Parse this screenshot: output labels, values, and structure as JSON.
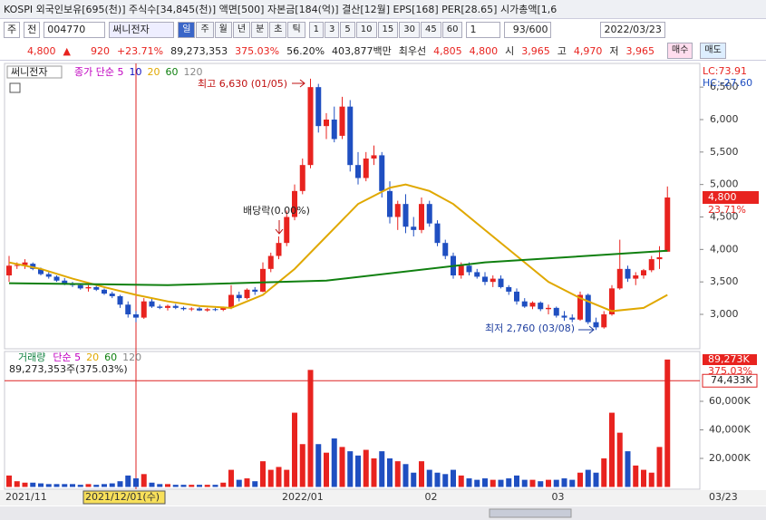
{
  "toolbar": {
    "info": "KOSPI 외국인보유[695(천)] 주식수[34,845(천)] 액면[500] 자본금[184(억)] 결산[12월] EPS[168] PER[28.65] 시가총액[1,6",
    "market": "주",
    "prev": "전",
    "code": "004770",
    "name": "써니전자",
    "periods": [
      "일",
      "주",
      "월",
      "년",
      "분",
      "초",
      "틱"
    ],
    "minutes": [
      "1",
      "3",
      "5",
      "10",
      "15",
      "30",
      "45",
      "60"
    ],
    "unit": "1",
    "count": "93/600",
    "date": "2022/03/23"
  },
  "quote": {
    "price": "4,800",
    "arrow": "▲",
    "change": "920",
    "rate": "+23.71%",
    "volume": "89,273,353",
    "volume_rate": "375.03%",
    "turnover": "56.20%",
    "amount": "403,877백만",
    "best_label": "최우선",
    "ask": "4,805",
    "bid": "4,800",
    "open_label": "시",
    "open": "3,965",
    "high_label": "고",
    "high": "4,970",
    "low_label": "저",
    "low": "3,965",
    "buy": "매수",
    "sell": "매도"
  },
  "chart_data": [
    {
      "type": "candlestick",
      "name": "써니전자",
      "lc": "LC:73.91",
      "hc": "HC:-27.60",
      "up_color": "#e8231f",
      "down_color": "#1f4fc1",
      "series": [
        {
          "name": "종가 단순 5",
          "color": "#c000c0"
        },
        {
          "name": "10",
          "color": "#1010c0"
        },
        {
          "name": "20",
          "color": "#e0a800",
          "x": [
            0,
            4,
            8,
            12,
            16,
            20,
            24,
            28,
            32,
            36,
            40,
            44,
            48,
            50,
            53,
            56,
            60,
            64,
            68,
            72,
            76,
            80,
            83
          ],
          "values": [
            3800,
            3700,
            3550,
            3420,
            3300,
            3200,
            3130,
            3100,
            3300,
            3700,
            4200,
            4700,
            4950,
            5000,
            4900,
            4700,
            4300,
            3900,
            3500,
            3250,
            3050,
            3100,
            3300
          ]
        },
        {
          "name": "60",
          "color": "#108010",
          "x": [
            0,
            20,
            40,
            60,
            83
          ],
          "values": [
            3480,
            3450,
            3520,
            3800,
            3980
          ]
        },
        {
          "name": "120",
          "color": "#888888"
        }
      ],
      "categories": [
        "2021/11",
        null,
        null,
        null,
        null,
        null,
        null,
        null,
        null,
        null,
        null,
        null,
        null,
        null,
        null,
        null,
        "2021/12/01(수)",
        null,
        null,
        null,
        null,
        null,
        null,
        null,
        null,
        null,
        null,
        null,
        null,
        null,
        null,
        null,
        null,
        null,
        null,
        null,
        "2022/01",
        null,
        null,
        null,
        null,
        null,
        null,
        null,
        null,
        null,
        null,
        null,
        null,
        null,
        null,
        null,
        null,
        null,
        "02",
        null,
        null,
        null,
        null,
        null,
        null,
        null,
        null,
        null,
        null,
        null,
        null,
        null,
        null,
        null,
        "03",
        null,
        null,
        null,
        null,
        null,
        null,
        null,
        null,
        null,
        null,
        null,
        null,
        null
      ],
      "x_end_label": "03/23",
      "candles": [
        [
          3600,
          3900,
          3500,
          3750
        ],
        [
          3750,
          3800,
          3700,
          3760
        ],
        [
          3760,
          3850,
          3700,
          3800
        ],
        [
          3780,
          3800,
          3680,
          3700
        ],
        [
          3700,
          3720,
          3600,
          3620
        ],
        [
          3620,
          3650,
          3550,
          3580
        ],
        [
          3580,
          3600,
          3500,
          3520
        ],
        [
          3520,
          3560,
          3450,
          3480
        ],
        [
          3480,
          3500,
          3420,
          3450
        ],
        [
          3450,
          3480,
          3380,
          3400
        ],
        [
          3400,
          3450,
          3350,
          3420
        ],
        [
          3420,
          3440,
          3360,
          3380
        ],
        [
          3380,
          3400,
          3300,
          3320
        ],
        [
          3320,
          3350,
          3250,
          3280
        ],
        [
          3280,
          3300,
          3100,
          3150
        ],
        [
          3150,
          3200,
          2950,
          3000
        ],
        [
          3000,
          3050,
          2880,
          2950
        ],
        [
          2950,
          3250,
          2930,
          3200
        ],
        [
          3200,
          3250,
          3100,
          3120
        ],
        [
          3120,
          3150,
          3080,
          3100
        ],
        [
          3100,
          3150,
          3060,
          3130
        ],
        [
          3130,
          3160,
          3080,
          3100
        ],
        [
          3100,
          3120,
          3060,
          3080
        ],
        [
          3080,
          3110,
          3050,
          3090
        ],
        [
          3090,
          3110,
          3050,
          3060
        ],
        [
          3060,
          3100,
          3040,
          3080
        ],
        [
          3080,
          3100,
          3050,
          3070
        ],
        [
          3070,
          3120,
          3050,
          3100
        ],
        [
          3100,
          3450,
          3080,
          3300
        ],
        [
          3300,
          3350,
          3200,
          3250
        ],
        [
          3250,
          3400,
          3230,
          3380
        ],
        [
          3380,
          3420,
          3300,
          3350
        ],
        [
          3350,
          3800,
          3340,
          3700
        ],
        [
          3700,
          3950,
          3650,
          3900
        ],
        [
          3900,
          4200,
          3850,
          4100
        ],
        [
          4100,
          4600,
          4050,
          4500
        ],
        [
          4500,
          5000,
          4450,
          4900
        ],
        [
          4900,
          5400,
          4850,
          5300
        ],
        [
          5300,
          6630,
          5250,
          6500
        ],
        [
          6500,
          6550,
          5800,
          5900
        ],
        [
          5900,
          6100,
          5700,
          6000
        ],
        [
          6000,
          6200,
          5650,
          5700
        ],
        [
          5750,
          6350,
          5700,
          6200
        ],
        [
          6200,
          6300,
          5200,
          5300
        ],
        [
          5300,
          5500,
          5000,
          5100
        ],
        [
          5100,
          5500,
          5050,
          5400
        ],
        [
          5400,
          5600,
          5300,
          5450
        ],
        [
          5450,
          5500,
          4800,
          4900
        ],
        [
          4900,
          5050,
          4400,
          4500
        ],
        [
          4500,
          4750,
          4300,
          4700
        ],
        [
          4700,
          4850,
          4250,
          4350
        ],
        [
          4350,
          4500,
          4200,
          4300
        ],
        [
          4300,
          4800,
          4250,
          4700
        ],
        [
          4700,
          4750,
          4350,
          4400
        ],
        [
          4400,
          4450,
          4050,
          4100
        ],
        [
          4100,
          4150,
          3850,
          3900
        ],
        [
          3900,
          3950,
          3550,
          3600
        ],
        [
          3600,
          3800,
          3550,
          3750
        ],
        [
          3750,
          3800,
          3600,
          3650
        ],
        [
          3650,
          3700,
          3550,
          3580
        ],
        [
          3580,
          3650,
          3450,
          3500
        ],
        [
          3500,
          3600,
          3420,
          3550
        ],
        [
          3550,
          3600,
          3400,
          3420
        ],
        [
          3420,
          3450,
          3300,
          3350
        ],
        [
          3350,
          3400,
          3150,
          3200
        ],
        [
          3200,
          3250,
          3100,
          3120
        ],
        [
          3120,
          3200,
          3080,
          3180
        ],
        [
          3180,
          3200,
          3050,
          3080
        ],
        [
          3080,
          3150,
          3000,
          3100
        ],
        [
          3100,
          3120,
          2950,
          2980
        ],
        [
          2980,
          3050,
          2900,
          2950
        ],
        [
          2950,
          3000,
          2880,
          2920
        ],
        [
          2920,
          3350,
          2900,
          3300
        ],
        [
          3300,
          3320,
          2850,
          2880
        ],
        [
          2880,
          2950,
          2760,
          2800
        ],
        [
          2800,
          3050,
          2780,
          3000
        ],
        [
          3000,
          3450,
          2980,
          3400
        ],
        [
          3400,
          4150,
          3380,
          3700
        ],
        [
          3700,
          3750,
          3500,
          3550
        ],
        [
          3550,
          3650,
          3450,
          3600
        ],
        [
          3600,
          3700,
          3550,
          3680
        ],
        [
          3680,
          3900,
          3650,
          3850
        ],
        [
          3850,
          4050,
          3700,
          3880
        ],
        [
          3965,
          4970,
          3965,
          4800
        ]
      ],
      "ylim": [
        2470,
        6865
      ],
      "yticks": [
        {
          "value": 3000,
          "label": "3,000"
        },
        {
          "value": 3500,
          "label": "3,500"
        },
        {
          "value": 4000,
          "label": "4,000"
        },
        {
          "value": 4500,
          "label": "4,500"
        },
        {
          "value": 5000,
          "label": "5,000"
        },
        {
          "value": 5500,
          "label": "5,500"
        },
        {
          "value": 6000,
          "label": "6,000"
        },
        {
          "value": 6500,
          "label": "6,500"
        }
      ],
      "last_price": 4800,
      "last_price_label": "4,800",
      "last_rate_label": "23.71%",
      "annotations": [
        "최고 6,630 (01/05)",
        "최저 2,760 (03/08)",
        "배당락(0.00%)"
      ]
    },
    {
      "type": "bar",
      "title": "거래량",
      "series": [
        {
          "name": "단순 5",
          "color": "#c000c0"
        },
        {
          "name": "20",
          "color": "#e0a800"
        },
        {
          "name": "60",
          "color": "#108010"
        },
        {
          "name": "120",
          "color": "#888888"
        }
      ],
      "summary": "89,273,353주(375.03%)",
      "values": [
        8000,
        4000,
        3000,
        3000,
        2500,
        2000,
        2000,
        2000,
        2000,
        1500,
        2000,
        1500,
        2000,
        2500,
        4000,
        8000,
        6000,
        9000,
        3000,
        2000,
        2000,
        1500,
        1500,
        1500,
        1500,
        1500,
        1500,
        3000,
        12000,
        5000,
        6000,
        4000,
        18000,
        12000,
        14000,
        12000,
        52000,
        30000,
        82000,
        30000,
        24000,
        34000,
        28000,
        25000,
        22000,
        26000,
        20000,
        25000,
        20000,
        18000,
        16000,
        10000,
        18000,
        12000,
        10000,
        9000,
        12000,
        8000,
        6000,
        5000,
        6000,
        5000,
        5000,
        6000,
        8000,
        5000,
        5000,
        4000,
        5000,
        5000,
        6000,
        5000,
        10000,
        12000,
        10000,
        20000,
        52000,
        38000,
        25000,
        15000,
        12000,
        10000,
        28000,
        89273
      ],
      "ylim": [
        0,
        94900
      ],
      "yticks": [
        {
          "value": 20000,
          "label": "20,000K"
        },
        {
          "value": 40000,
          "label": "40,000K"
        },
        {
          "value": 60000,
          "label": "60,000K"
        }
      ],
      "last_label": "89,273K",
      "last_rate_label": "375.03%",
      "ref_value": 74433,
      "ref_label": "74,433K"
    }
  ]
}
